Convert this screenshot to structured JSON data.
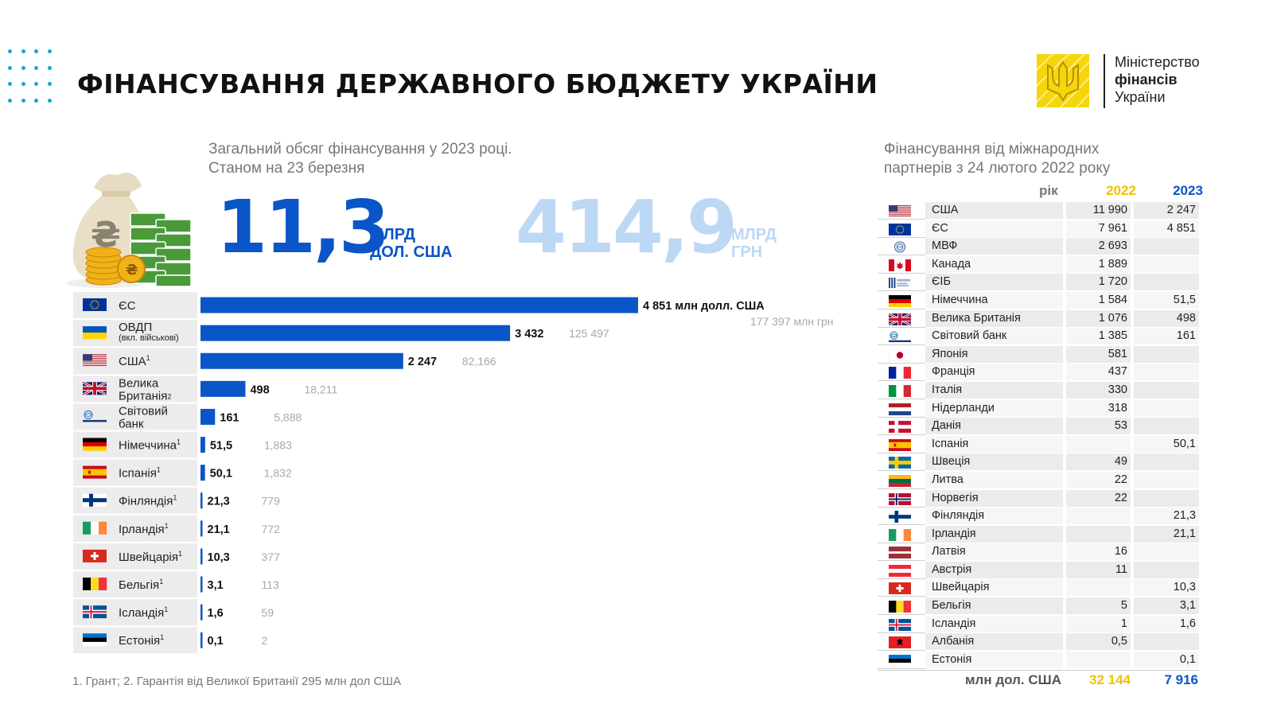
{
  "header": {
    "title": "ФІНАНСУВАННЯ ДЕРЖАВНОГО БЮДЖЕТУ УКРАЇНИ",
    "logo_line1": "Міністерство",
    "logo_line2": "фінансів",
    "logo_line3": "України"
  },
  "summary": {
    "subtitle_line1": "Загальний обсяг фінансування у 2023 році.",
    "subtitle_line2": "Станом на 23 березня",
    "usd_value": "11,3",
    "usd_unit_line1": "МЛРД",
    "usd_unit_line2": "ДОЛ. США",
    "uah_value": "414,9",
    "uah_unit_line1": "МЛРД",
    "uah_unit_line2": "ГРН"
  },
  "footnote": "1. Грант; 2. Гарантія від Великої Британії 295 млн дол США",
  "chart_data": {
    "type": "bar",
    "orientation": "horizontal",
    "series": [
      {
        "name": "млн долл. США",
        "values": [
          4851,
          3432,
          2247,
          498,
          161,
          51.5,
          50.1,
          21.3,
          21.1,
          10.3,
          3.1,
          1.6,
          0.1
        ]
      }
    ],
    "categories": [
      "ЄС",
      "ОВДП",
      "США",
      "Велика Британія",
      "Світовий банк",
      "Німеччина",
      "Іспанія",
      "Фінляндія",
      "Ірландія",
      "Швейцарія",
      "Бельгія",
      "Ісландія",
      "Естонія"
    ],
    "category_labels": [
      {
        "line1": "ЄС",
        "sup": ""
      },
      {
        "line1": "ОВДП",
        "line2": "(вкл. військові)",
        "sup": ""
      },
      {
        "line1": "США",
        "sup": "1"
      },
      {
        "line1": "Велика",
        "line2": "Британія",
        "sup": "2"
      },
      {
        "line1": "Світовий",
        "line2": "банк",
        "sup": ""
      },
      {
        "line1": "Німеччина",
        "sup": "1"
      },
      {
        "line1": "Іспанія",
        "sup": "1"
      },
      {
        "line1": "Фінляндія",
        "sup": "1"
      },
      {
        "line1": "Ірландія",
        "sup": "1"
      },
      {
        "line1": "Швейцарія",
        "sup": "1"
      },
      {
        "line1": "Бельгія",
        "sup": "1"
      },
      {
        "line1": "Ісландія",
        "sup": "1"
      },
      {
        "line1": "Естонія",
        "sup": "1"
      }
    ],
    "usd_labels": [
      "4 851 млн долл. США",
      "3 432",
      "2 247",
      "498",
      "161",
      "51,5",
      "50,1",
      "21,3",
      "21,1",
      "10,3",
      "3,1",
      "1,6",
      "0,1"
    ],
    "uah_labels": [
      "",
      "125 497",
      "82,166",
      "18,211",
      "5,888",
      "1,883",
      "1,832",
      "779",
      "772",
      "377",
      "113",
      "59",
      "2"
    ],
    "uah_note": "177 397 млн грн",
    "flags": [
      "eu",
      "ua",
      "us",
      "gb",
      "wb",
      "de",
      "es",
      "fi",
      "ie",
      "ch",
      "be",
      "is",
      "ee"
    ],
    "bar_color": "#0a55c7",
    "label_bg": "#ececec"
  },
  "partners_table": {
    "subtitle_line1": "Фінансування від міжнародних",
    "subtitle_line2": "партнерів з 24 лютого 2022 року",
    "header_year": "рік",
    "header_2022": "2022",
    "header_2023": "2023",
    "rows": [
      {
        "flag": "us",
        "name": "США",
        "v2022": "11 990",
        "v2023": "2 247"
      },
      {
        "flag": "eu",
        "name": "ЄС",
        "v2022": "7 961",
        "v2023": "4 851"
      },
      {
        "flag": "imf",
        "name": "МВФ",
        "v2022": "2 693",
        "v2023": ""
      },
      {
        "flag": "ca",
        "name": "Канада",
        "v2022": "1 889",
        "v2023": ""
      },
      {
        "flag": "eib",
        "name": "ЄІБ",
        "v2022": "1 720",
        "v2023": ""
      },
      {
        "flag": "de",
        "name": "Німеччина",
        "v2022": "1 584",
        "v2023": "51,5"
      },
      {
        "flag": "gb",
        "name": "Велика Британія",
        "v2022": "1 076",
        "v2023": "498"
      },
      {
        "flag": "wb",
        "name": "Світовий банк",
        "v2022": "1 385",
        "v2023": "161"
      },
      {
        "flag": "jp",
        "name": "Японія",
        "v2022": "581",
        "v2023": ""
      },
      {
        "flag": "fr",
        "name": "Франція",
        "v2022": "437",
        "v2023": ""
      },
      {
        "flag": "it",
        "name": "Італія",
        "v2022": "330",
        "v2023": ""
      },
      {
        "flag": "nl",
        "name": "Нідерланди",
        "v2022": "318",
        "v2023": ""
      },
      {
        "flag": "dk",
        "name": "Данія",
        "v2022": "53",
        "v2023": ""
      },
      {
        "flag": "es",
        "name": "Іспанія",
        "v2022": "",
        "v2023": "50,1"
      },
      {
        "flag": "se",
        "name": "Швеція",
        "v2022": "49",
        "v2023": ""
      },
      {
        "flag": "lt",
        "name": "Литва",
        "v2022": "22",
        "v2023": ""
      },
      {
        "flag": "no",
        "name": "Норвегія",
        "v2022": "22",
        "v2023": ""
      },
      {
        "flag": "fi",
        "name": "Фінляндія",
        "v2022": "",
        "v2023": "21,3"
      },
      {
        "flag": "ie",
        "name": "Ірландія",
        "v2022": "",
        "v2023": "21,1"
      },
      {
        "flag": "lv",
        "name": "Латвія",
        "v2022": "16",
        "v2023": ""
      },
      {
        "flag": "at",
        "name": "Австрія",
        "v2022": "11",
        "v2023": ""
      },
      {
        "flag": "ch",
        "name": "Швейцарія",
        "v2022": "",
        "v2023": "10,3"
      },
      {
        "flag": "be",
        "name": "Бельгія",
        "v2022": "5",
        "v2023": "3,1"
      },
      {
        "flag": "is",
        "name": "Ісландія",
        "v2022": "1",
        "v2023": "1,6"
      },
      {
        "flag": "al",
        "name": "Албанія",
        "v2022": "0,5",
        "v2023": ""
      },
      {
        "flag": "ee",
        "name": "Естонія",
        "v2022": "",
        "v2023": "0,1"
      }
    ],
    "total_label": "млн дол. США",
    "total_2022": "32 144",
    "total_2023": "7 916",
    "color_2022": "#f2c100",
    "color_2023": "#0a55c7"
  }
}
